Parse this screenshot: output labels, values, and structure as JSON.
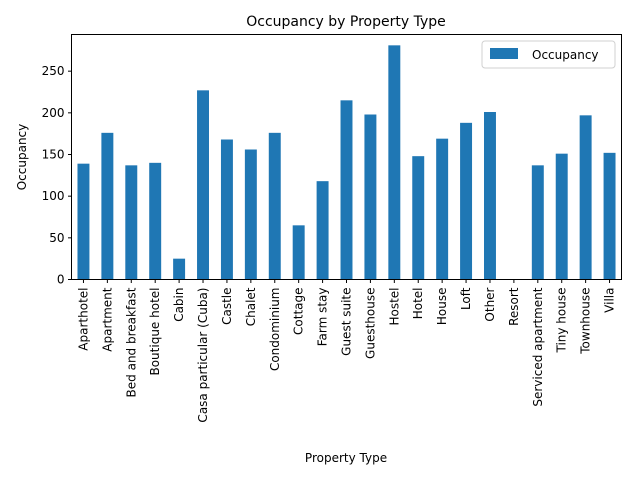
{
  "chart_data": {
    "type": "bar",
    "title": "Occupancy by Property Type",
    "xlabel": "Property Type",
    "ylabel": "Occupancy",
    "ylim": [
      0,
      294
    ],
    "yticks": [
      0,
      50,
      100,
      150,
      200,
      250
    ],
    "grid": false,
    "legend_position": "top-right",
    "bar_color": "#1f77b4",
    "categories": [
      "Aparthotel",
      "Apartment",
      "Bed and breakfast",
      "Boutique hotel",
      "Cabin",
      "Casa particular (Cuba)",
      "Castle",
      "Chalet",
      "Condominium",
      "Cottage",
      "Farm stay",
      "Guest suite",
      "Guesthouse",
      "Hostel",
      "Hotel",
      "House",
      "Loft",
      "Other",
      "Resort",
      "Serviced apartment",
      "Tiny house",
      "Townhouse",
      "Villa"
    ],
    "series": [
      {
        "name": "Occupancy",
        "values": [
          139,
          176,
          137,
          140,
          25,
          227,
          168,
          156,
          176,
          65,
          118,
          215,
          198,
          281,
          148,
          169,
          188,
          201,
          0,
          137,
          151,
          197,
          152
        ]
      }
    ]
  }
}
